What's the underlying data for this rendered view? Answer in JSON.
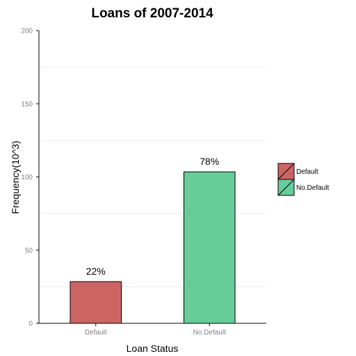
{
  "chart_data": {
    "type": "bar",
    "title": "Loans of 2007-2014",
    "xlabel": "Loan Status",
    "ylabel": "Frequency(10^3)",
    "categories": [
      "Default",
      "No.Default"
    ],
    "values": [
      28.5,
      103.5
    ],
    "bar_labels": [
      "22%",
      "78%"
    ],
    "colors": [
      "#cd6464",
      "#66cd99"
    ],
    "ylim": [
      0,
      200
    ],
    "yticks": [
      0,
      50,
      100,
      150,
      200
    ],
    "grid": "horizontal",
    "legend": {
      "position": "right",
      "entries": [
        "Default",
        "No.Default"
      ]
    }
  }
}
